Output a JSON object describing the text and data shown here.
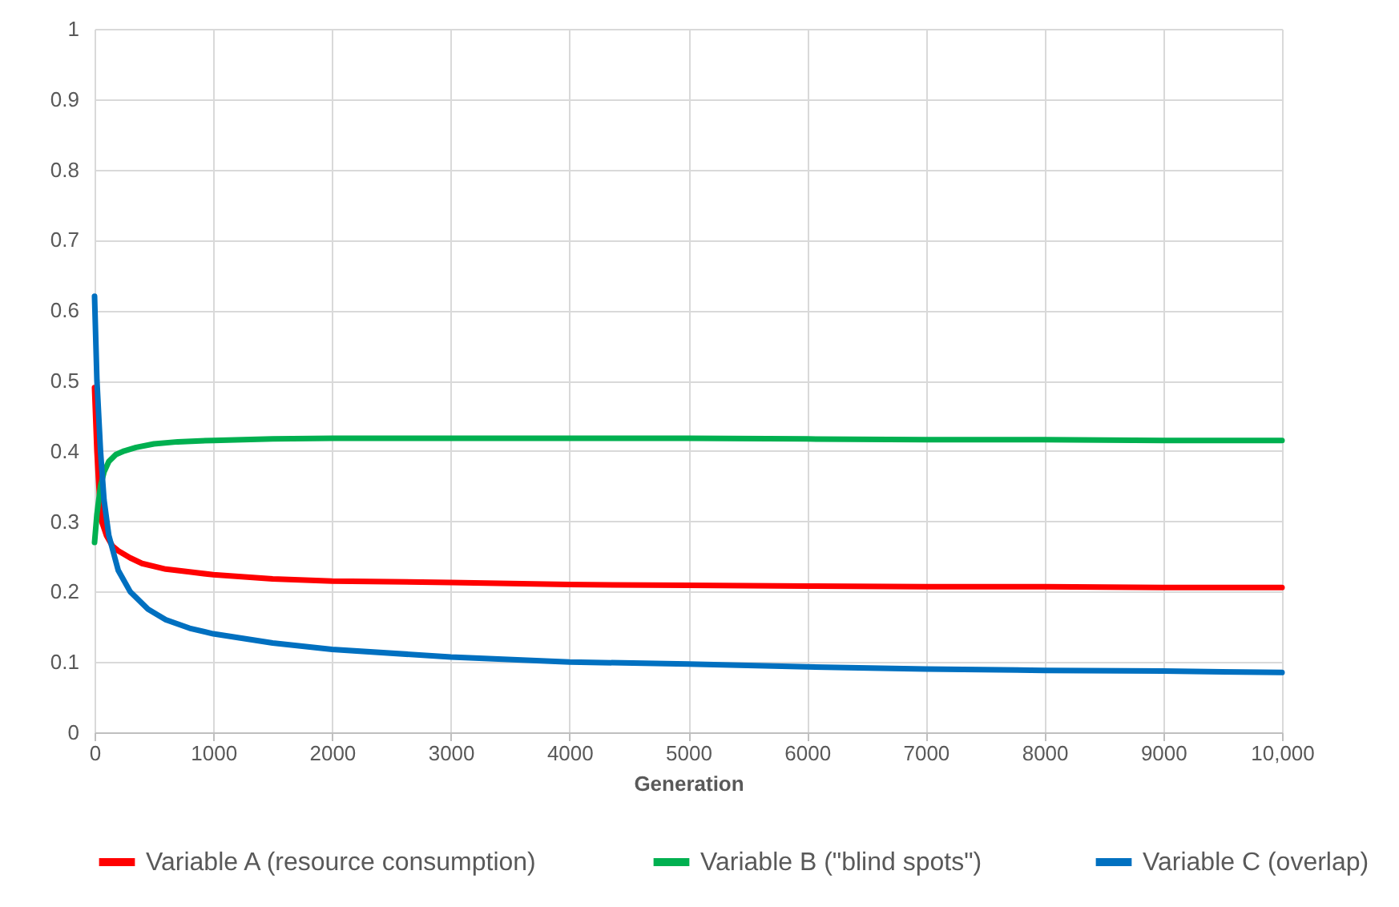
{
  "chart_data": {
    "type": "line",
    "xlabel": "Generation",
    "xlim": [
      0,
      10000
    ],
    "ylim": [
      0,
      1
    ],
    "xticks": [
      0,
      1000,
      2000,
      3000,
      4000,
      5000,
      6000,
      7000,
      8000,
      9000,
      {
        "value": 10000,
        "label": "10,000"
      }
    ],
    "yticks": [
      0,
      0.1,
      0.2,
      0.3,
      0.4,
      0.5,
      0.6,
      0.7,
      0.8,
      0.9,
      1
    ],
    "grid": true,
    "legend": "bottom",
    "line_style": "solid",
    "series": [
      {
        "name": "Variable A (resource consumption)",
        "color": "#ff0000",
        "x": [
          0,
          20,
          40,
          60,
          100,
          150,
          200,
          300,
          400,
          600,
          800,
          1000,
          1500,
          2000,
          3000,
          4000,
          5000,
          6000,
          7000,
          8000,
          9000,
          10000
        ],
        "values": [
          0.49,
          0.4,
          0.34,
          0.3,
          0.28,
          0.265,
          0.258,
          0.248,
          0.24,
          0.232,
          0.228,
          0.224,
          0.218,
          0.215,
          0.213,
          0.21,
          0.209,
          0.208,
          0.207,
          0.207,
          0.206,
          0.206
        ]
      },
      {
        "name": "Variable B (\"blind spots\")",
        "color": "#00b050",
        "x": [
          0,
          20,
          50,
          80,
          120,
          180,
          250,
          350,
          500,
          700,
          1000,
          1500,
          2000,
          3000,
          4000,
          5000,
          6000,
          7000,
          8000,
          9000,
          10000
        ],
        "values": [
          0.27,
          0.31,
          0.35,
          0.37,
          0.385,
          0.395,
          0.4,
          0.405,
          0.41,
          0.413,
          0.415,
          0.417,
          0.418,
          0.418,
          0.418,
          0.418,
          0.417,
          0.416,
          0.416,
          0.415,
          0.415
        ]
      },
      {
        "name": "Variable C (overlap)",
        "color": "#0070c0",
        "x": [
          0,
          20,
          50,
          80,
          120,
          200,
          300,
          450,
          600,
          800,
          1000,
          1500,
          2000,
          3000,
          4000,
          5000,
          6000,
          7000,
          8000,
          9000,
          10000
        ],
        "values": [
          0.62,
          0.5,
          0.4,
          0.33,
          0.28,
          0.23,
          0.2,
          0.175,
          0.16,
          0.148,
          0.14,
          0.127,
          0.118,
          0.107,
          0.1,
          0.097,
          0.093,
          0.09,
          0.088,
          0.087,
          0.085
        ]
      }
    ]
  }
}
